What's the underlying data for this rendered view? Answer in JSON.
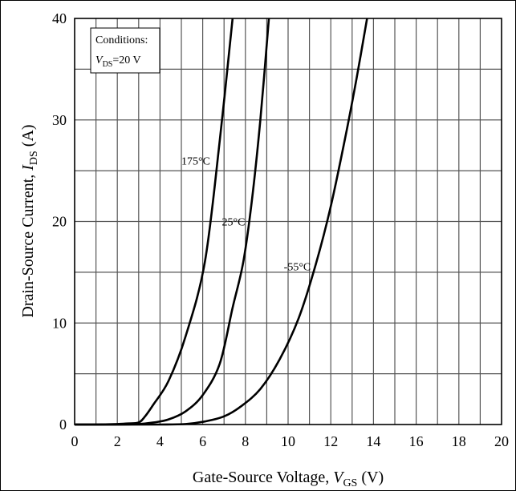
{
  "chart_data": {
    "type": "line",
    "xlabel": {
      "prefix": "Gate-Source Voltage, ",
      "var": "V",
      "sub": "GS",
      "suffix": " (V)"
    },
    "ylabel": {
      "prefix": "Drain-Source Current, ",
      "var": "I",
      "sub": "DS",
      "suffix": " (A)"
    },
    "xlim": [
      0,
      20
    ],
    "ylim": [
      0,
      40
    ],
    "x_ticks": [
      "0",
      "2",
      "4",
      "6",
      "8",
      "10",
      "12",
      "14",
      "16",
      "18",
      "20"
    ],
    "y_ticks": [
      "0",
      "10",
      "20",
      "30",
      "40"
    ],
    "grid": true,
    "conditions": {
      "title": "Conditions:",
      "var": "V",
      "sub": "DS",
      "value": "=20 V"
    },
    "series": [
      {
        "name": "175°C",
        "x": [
          0,
          1,
          2,
          2.5,
          3.0,
          3.3,
          3.7,
          4.4,
          5.2,
          6.1,
          6.8,
          7.4
        ],
        "y": [
          0,
          0,
          0.05,
          0.1,
          0.2,
          0.8,
          2.0,
          4.3,
          8.7,
          16.0,
          28.0,
          40.0
        ]
      },
      {
        "name": "25°C",
        "x": [
          0,
          2,
          3,
          3.7,
          4.4,
          5.2,
          6.0,
          6.8,
          7.4,
          7.9,
          8.3,
          8.7,
          9.1
        ],
        "y": [
          0,
          0,
          0.05,
          0.2,
          0.5,
          1.3,
          2.9,
          6.0,
          11.5,
          16.0,
          22.0,
          30.0,
          40.0
        ]
      },
      {
        "name": "-55°C",
        "x": [
          0,
          4,
          5.2,
          6.1,
          7.0,
          7.8,
          8.7,
          9.6,
          10.5,
          11.3,
          12.0,
          12.7,
          13.2,
          13.7
        ],
        "y": [
          0,
          0,
          0.05,
          0.3,
          0.8,
          1.8,
          3.5,
          6.4,
          10.5,
          15.8,
          21.5,
          28.5,
          34.0,
          40.0
        ]
      }
    ],
    "label_positions": [
      {
        "series": "175°C",
        "x": 5.0,
        "y": 25.6
      },
      {
        "series": "25°C",
        "x": 6.9,
        "y": 19.6
      },
      {
        "series": "-55°C",
        "x": 9.8,
        "y": 15.2
      }
    ]
  }
}
